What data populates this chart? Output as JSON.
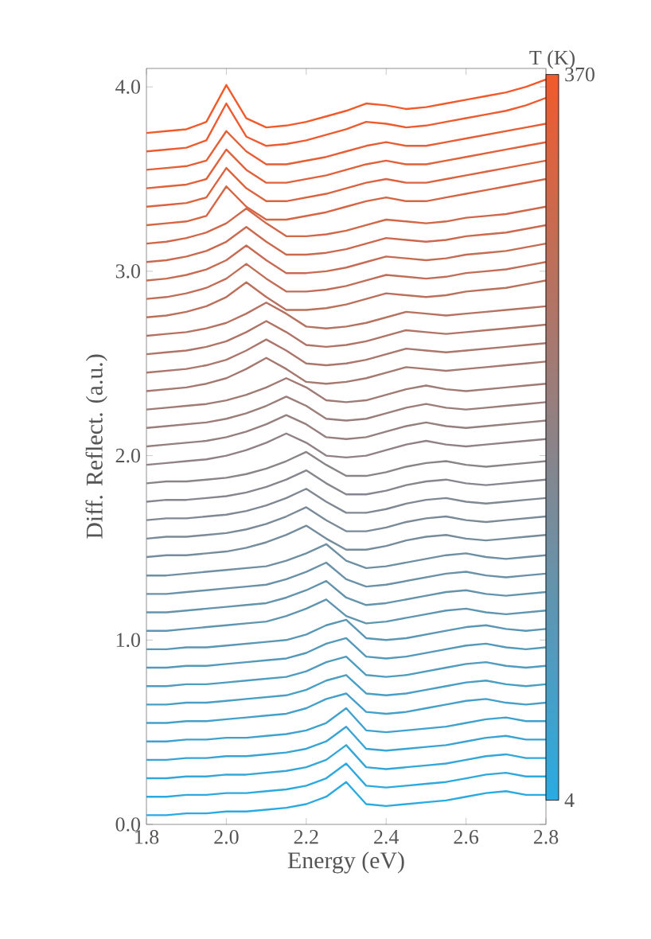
{
  "chart_data": {
    "type": "line",
    "xlabel": "Energy (eV)",
    "ylabel": "Diff. Reflect. (a.u.)",
    "clabel": "T (K)",
    "xlim": [
      1.8,
      2.8
    ],
    "ylim": [
      0,
      4.1
    ],
    "xticks": [
      {
        "value": 1.8,
        "label": "1.8"
      },
      {
        "value": 2.0,
        "label": "2.0"
      },
      {
        "value": 2.2,
        "label": "2.2"
      },
      {
        "value": 2.4,
        "label": "2.4"
      },
      {
        "value": 2.6,
        "label": "2.6"
      },
      {
        "value": 2.8,
        "label": "2.8"
      }
    ],
    "yticks": [
      {
        "value": 0,
        "label": "0.0"
      },
      {
        "value": 1,
        "label": "1.0"
      },
      {
        "value": 2,
        "label": "2.0"
      },
      {
        "value": 3,
        "label": "3.0"
      },
      {
        "value": 4,
        "label": "4.0"
      }
    ],
    "clim": [
      4,
      370
    ],
    "cticks": [
      4,
      370
    ],
    "line_style": "solid",
    "x": [
      1.8,
      1.85,
      1.9,
      1.95,
      2.0,
      2.05,
      2.1,
      2.15,
      2.2,
      2.25,
      2.3,
      2.35,
      2.4,
      2.45,
      2.5,
      2.55,
      2.6,
      2.65,
      2.7,
      2.75,
      2.8
    ],
    "series": [
      {
        "color": "#29abe2",
        "values": [
          0.05,
          0.05,
          0.06,
          0.06,
          0.07,
          0.07,
          0.08,
          0.09,
          0.11,
          0.15,
          0.23,
          0.11,
          0.1,
          0.11,
          0.12,
          0.13,
          0.15,
          0.17,
          0.18,
          0.16,
          0.16
        ]
      },
      {
        "color": "#2ea9dd",
        "values": [
          0.15,
          0.15,
          0.16,
          0.16,
          0.17,
          0.17,
          0.18,
          0.19,
          0.21,
          0.25,
          0.33,
          0.21,
          0.2,
          0.21,
          0.22,
          0.23,
          0.25,
          0.27,
          0.28,
          0.26,
          0.26
        ]
      },
      {
        "color": "#34a7d8",
        "values": [
          0.25,
          0.25,
          0.26,
          0.26,
          0.27,
          0.27,
          0.28,
          0.29,
          0.31,
          0.35,
          0.43,
          0.31,
          0.3,
          0.31,
          0.32,
          0.33,
          0.35,
          0.37,
          0.38,
          0.36,
          0.36
        ]
      },
      {
        "color": "#39a4d3",
        "values": [
          0.35,
          0.35,
          0.36,
          0.36,
          0.37,
          0.37,
          0.38,
          0.39,
          0.41,
          0.45,
          0.53,
          0.41,
          0.4,
          0.41,
          0.42,
          0.43,
          0.45,
          0.47,
          0.48,
          0.46,
          0.46
        ]
      },
      {
        "color": "#3fa2ce",
        "values": [
          0.45,
          0.45,
          0.46,
          0.46,
          0.47,
          0.47,
          0.48,
          0.49,
          0.51,
          0.55,
          0.63,
          0.51,
          0.5,
          0.51,
          0.52,
          0.53,
          0.55,
          0.57,
          0.58,
          0.56,
          0.56
        ]
      },
      {
        "color": "#44a0c9",
        "values": [
          0.55,
          0.55,
          0.56,
          0.56,
          0.57,
          0.58,
          0.59,
          0.6,
          0.63,
          0.68,
          0.71,
          0.61,
          0.6,
          0.61,
          0.63,
          0.65,
          0.67,
          0.68,
          0.66,
          0.65,
          0.66
        ]
      },
      {
        "color": "#499ec4",
        "values": [
          0.65,
          0.65,
          0.66,
          0.66,
          0.67,
          0.68,
          0.69,
          0.7,
          0.73,
          0.78,
          0.81,
          0.71,
          0.7,
          0.71,
          0.73,
          0.75,
          0.77,
          0.78,
          0.76,
          0.75,
          0.76
        ]
      },
      {
        "color": "#4f9cbf",
        "values": [
          0.75,
          0.75,
          0.76,
          0.76,
          0.77,
          0.78,
          0.79,
          0.8,
          0.83,
          0.88,
          0.91,
          0.81,
          0.8,
          0.81,
          0.83,
          0.85,
          0.87,
          0.88,
          0.86,
          0.85,
          0.86
        ]
      },
      {
        "color": "#5499ba",
        "values": [
          0.85,
          0.85,
          0.86,
          0.86,
          0.87,
          0.88,
          0.89,
          0.9,
          0.93,
          0.98,
          1.01,
          0.91,
          0.9,
          0.91,
          0.93,
          0.95,
          0.97,
          0.98,
          0.96,
          0.95,
          0.96
        ]
      },
      {
        "color": "#5a97b5",
        "values": [
          0.95,
          0.95,
          0.96,
          0.96,
          0.97,
          0.98,
          0.99,
          1.0,
          1.03,
          1.08,
          1.11,
          1.01,
          1.0,
          1.01,
          1.03,
          1.05,
          1.07,
          1.08,
          1.06,
          1.05,
          1.06
        ]
      },
      {
        "color": "#5f95b1",
        "values": [
          1.05,
          1.05,
          1.06,
          1.07,
          1.08,
          1.09,
          1.1,
          1.13,
          1.17,
          1.22,
          1.13,
          1.09,
          1.1,
          1.12,
          1.14,
          1.16,
          1.17,
          1.15,
          1.14,
          1.15,
          1.16
        ]
      },
      {
        "color": "#6493ac",
        "values": [
          1.15,
          1.15,
          1.16,
          1.17,
          1.18,
          1.19,
          1.2,
          1.23,
          1.27,
          1.32,
          1.23,
          1.19,
          1.2,
          1.22,
          1.24,
          1.26,
          1.27,
          1.25,
          1.24,
          1.25,
          1.26
        ]
      },
      {
        "color": "#6a91a7",
        "values": [
          1.25,
          1.25,
          1.26,
          1.27,
          1.28,
          1.29,
          1.3,
          1.33,
          1.37,
          1.42,
          1.33,
          1.29,
          1.3,
          1.32,
          1.34,
          1.36,
          1.37,
          1.35,
          1.34,
          1.35,
          1.36
        ]
      },
      {
        "color": "#6f8fa2",
        "values": [
          1.35,
          1.35,
          1.36,
          1.37,
          1.38,
          1.39,
          1.4,
          1.43,
          1.47,
          1.52,
          1.43,
          1.39,
          1.4,
          1.42,
          1.44,
          1.46,
          1.47,
          1.45,
          1.44,
          1.45,
          1.46
        ]
      },
      {
        "color": "#758c9d",
        "values": [
          1.45,
          1.46,
          1.46,
          1.47,
          1.48,
          1.5,
          1.53,
          1.57,
          1.62,
          1.55,
          1.49,
          1.49,
          1.51,
          1.54,
          1.56,
          1.57,
          1.55,
          1.54,
          1.55,
          1.56,
          1.57
        ]
      },
      {
        "color": "#7a8a98",
        "values": [
          1.55,
          1.56,
          1.56,
          1.57,
          1.58,
          1.6,
          1.63,
          1.67,
          1.72,
          1.65,
          1.59,
          1.59,
          1.61,
          1.64,
          1.66,
          1.67,
          1.65,
          1.64,
          1.65,
          1.66,
          1.67
        ]
      },
      {
        "color": "#7f8893",
        "values": [
          1.65,
          1.66,
          1.66,
          1.67,
          1.68,
          1.7,
          1.73,
          1.77,
          1.82,
          1.75,
          1.69,
          1.69,
          1.71,
          1.74,
          1.76,
          1.77,
          1.75,
          1.74,
          1.75,
          1.76,
          1.77
        ]
      },
      {
        "color": "#85868e",
        "values": [
          1.75,
          1.76,
          1.76,
          1.77,
          1.78,
          1.8,
          1.83,
          1.87,
          1.92,
          1.85,
          1.79,
          1.79,
          1.81,
          1.84,
          1.86,
          1.87,
          1.85,
          1.84,
          1.85,
          1.86,
          1.87
        ]
      },
      {
        "color": "#8a8489",
        "values": [
          1.85,
          1.86,
          1.86,
          1.87,
          1.88,
          1.9,
          1.93,
          1.97,
          2.02,
          1.95,
          1.89,
          1.89,
          1.91,
          1.94,
          1.96,
          1.97,
          1.95,
          1.94,
          1.95,
          1.96,
          1.97
        ]
      },
      {
        "color": "#908184",
        "values": [
          1.95,
          1.96,
          1.97,
          1.98,
          2.0,
          2.03,
          2.07,
          2.12,
          2.07,
          2.0,
          1.99,
          2.0,
          2.03,
          2.06,
          2.08,
          2.06,
          2.05,
          2.06,
          2.07,
          2.08,
          2.09
        ]
      },
      {
        "color": "#957f7f",
        "values": [
          2.05,
          2.06,
          2.07,
          2.08,
          2.1,
          2.13,
          2.17,
          2.22,
          2.17,
          2.1,
          2.09,
          2.1,
          2.13,
          2.16,
          2.18,
          2.16,
          2.15,
          2.16,
          2.17,
          2.18,
          2.19
        ]
      },
      {
        "color": "#9b7d7a",
        "values": [
          2.15,
          2.16,
          2.17,
          2.18,
          2.2,
          2.23,
          2.27,
          2.32,
          2.27,
          2.2,
          2.19,
          2.2,
          2.23,
          2.26,
          2.28,
          2.26,
          2.25,
          2.26,
          2.27,
          2.28,
          2.29
        ]
      },
      {
        "color": "#a07b75",
        "values": [
          2.25,
          2.26,
          2.27,
          2.28,
          2.3,
          2.33,
          2.37,
          2.42,
          2.37,
          2.3,
          2.29,
          2.3,
          2.33,
          2.36,
          2.38,
          2.36,
          2.35,
          2.36,
          2.37,
          2.38,
          2.39
        ]
      },
      {
        "color": "#a57970",
        "values": [
          2.35,
          2.36,
          2.37,
          2.39,
          2.42,
          2.47,
          2.53,
          2.47,
          2.4,
          2.39,
          2.4,
          2.42,
          2.45,
          2.48,
          2.47,
          2.46,
          2.47,
          2.48,
          2.49,
          2.5,
          2.51
        ]
      },
      {
        "color": "#ab766b",
        "values": [
          2.45,
          2.46,
          2.47,
          2.49,
          2.52,
          2.57,
          2.63,
          2.57,
          2.5,
          2.49,
          2.5,
          2.52,
          2.55,
          2.58,
          2.57,
          2.56,
          2.57,
          2.58,
          2.59,
          2.6,
          2.61
        ]
      },
      {
        "color": "#b07466",
        "values": [
          2.55,
          2.56,
          2.57,
          2.59,
          2.62,
          2.67,
          2.73,
          2.67,
          2.6,
          2.59,
          2.6,
          2.62,
          2.65,
          2.68,
          2.67,
          2.66,
          2.67,
          2.68,
          2.69,
          2.7,
          2.71
        ]
      },
      {
        "color": "#b67261",
        "values": [
          2.65,
          2.66,
          2.67,
          2.69,
          2.72,
          2.77,
          2.83,
          2.77,
          2.7,
          2.69,
          2.7,
          2.72,
          2.75,
          2.78,
          2.77,
          2.76,
          2.77,
          2.78,
          2.79,
          2.8,
          2.81
        ]
      },
      {
        "color": "#bb705c",
        "values": [
          2.75,
          2.76,
          2.78,
          2.81,
          2.86,
          2.94,
          2.86,
          2.79,
          2.79,
          2.8,
          2.82,
          2.85,
          2.88,
          2.87,
          2.86,
          2.87,
          2.89,
          2.9,
          2.91,
          2.93,
          2.95
        ]
      },
      {
        "color": "#c06e57",
        "values": [
          2.85,
          2.86,
          2.88,
          2.91,
          2.96,
          3.04,
          2.96,
          2.89,
          2.89,
          2.9,
          2.92,
          2.95,
          2.98,
          2.97,
          2.96,
          2.97,
          2.99,
          3.0,
          3.01,
          3.03,
          3.05
        ]
      },
      {
        "color": "#c66c53",
        "values": [
          2.95,
          2.96,
          2.98,
          3.01,
          3.06,
          3.14,
          3.06,
          2.99,
          2.99,
          3.0,
          3.02,
          3.05,
          3.08,
          3.07,
          3.06,
          3.07,
          3.09,
          3.1,
          3.11,
          3.13,
          3.15
        ]
      },
      {
        "color": "#cb694e",
        "values": [
          3.05,
          3.06,
          3.08,
          3.11,
          3.16,
          3.24,
          3.16,
          3.09,
          3.09,
          3.1,
          3.12,
          3.15,
          3.18,
          3.17,
          3.16,
          3.17,
          3.19,
          3.2,
          3.21,
          3.23,
          3.25
        ]
      },
      {
        "color": "#d06749",
        "values": [
          3.15,
          3.16,
          3.18,
          3.21,
          3.26,
          3.34,
          3.26,
          3.19,
          3.19,
          3.2,
          3.22,
          3.25,
          3.28,
          3.27,
          3.26,
          3.27,
          3.29,
          3.3,
          3.31,
          3.33,
          3.35
        ]
      },
      {
        "color": "#d66544",
        "values": [
          3.25,
          3.26,
          3.27,
          3.3,
          3.46,
          3.35,
          3.28,
          3.28,
          3.3,
          3.32,
          3.35,
          3.38,
          3.4,
          3.38,
          3.38,
          3.4,
          3.42,
          3.44,
          3.46,
          3.48,
          3.5
        ]
      },
      {
        "color": "#db633f",
        "values": [
          3.35,
          3.36,
          3.37,
          3.4,
          3.56,
          3.45,
          3.38,
          3.38,
          3.4,
          3.42,
          3.45,
          3.48,
          3.5,
          3.48,
          3.48,
          3.5,
          3.52,
          3.54,
          3.56,
          3.58,
          3.6
        ]
      },
      {
        "color": "#e1613a",
        "values": [
          3.45,
          3.46,
          3.47,
          3.5,
          3.66,
          3.55,
          3.48,
          3.48,
          3.5,
          3.52,
          3.55,
          3.58,
          3.6,
          3.58,
          3.58,
          3.6,
          3.62,
          3.64,
          3.66,
          3.68,
          3.7
        ]
      },
      {
        "color": "#e65e35",
        "values": [
          3.55,
          3.56,
          3.57,
          3.6,
          3.76,
          3.65,
          3.58,
          3.58,
          3.6,
          3.62,
          3.65,
          3.68,
          3.7,
          3.68,
          3.68,
          3.7,
          3.72,
          3.74,
          3.76,
          3.78,
          3.8
        ]
      },
      {
        "color": "#ec5c30",
        "values": [
          3.65,
          3.66,
          3.67,
          3.71,
          3.91,
          3.73,
          3.68,
          3.69,
          3.71,
          3.74,
          3.77,
          3.81,
          3.8,
          3.78,
          3.79,
          3.81,
          3.83,
          3.85,
          3.87,
          3.9,
          3.94
        ]
      },
      {
        "color": "#f15a2b",
        "values": [
          3.75,
          3.76,
          3.77,
          3.81,
          4.01,
          3.83,
          3.78,
          3.79,
          3.81,
          3.84,
          3.87,
          3.91,
          3.9,
          3.88,
          3.89,
          3.91,
          3.93,
          3.95,
          3.97,
          4.0,
          4.04
        ]
      }
    ]
  }
}
